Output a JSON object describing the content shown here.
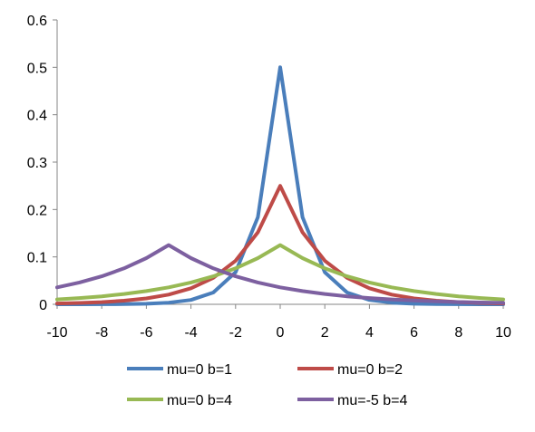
{
  "chart_data": {
    "type": "line",
    "title": "",
    "xlabel": "",
    "ylabel": "",
    "xlim": [
      -10,
      10
    ],
    "ylim": [
      0,
      0.6
    ],
    "x_ticks": [
      "-10",
      "-8",
      "-6",
      "-4",
      "-2",
      "0",
      "2",
      "4",
      "6",
      "8",
      "10"
    ],
    "y_ticks": [
      "0",
      "0.1",
      "0.2",
      "0.3",
      "0.4",
      "0.5",
      "0.6"
    ],
    "grid": false,
    "legend_position": "bottom",
    "x": [
      -10,
      -9,
      -8,
      -7,
      -6,
      -5,
      -4,
      -3,
      -2,
      -1,
      0,
      1,
      2,
      3,
      4,
      5,
      6,
      7,
      8,
      9,
      10
    ],
    "series": [
      {
        "name": "mu=0 b=1",
        "color": "#4A7EBB",
        "values": [
          2.3e-05,
          6.2e-05,
          0.000168,
          0.000456,
          0.00124,
          0.00337,
          0.00916,
          0.0249,
          0.0677,
          0.184,
          0.5,
          0.184,
          0.0677,
          0.0249,
          0.00916,
          0.00337,
          0.00124,
          0.000456,
          0.000168,
          6.2e-05,
          2.3e-05
        ]
      },
      {
        "name": "mu=0 b=2",
        "color": "#BE4B48",
        "values": [
          0.00168,
          0.00278,
          0.00458,
          0.00755,
          0.0124,
          0.0205,
          0.0338,
          0.0558,
          0.092,
          0.152,
          0.25,
          0.152,
          0.092,
          0.0558,
          0.0338,
          0.0205,
          0.0124,
          0.00755,
          0.00458,
          0.00278,
          0.00168
        ]
      },
      {
        "name": "mu=0 b=4",
        "color": "#98B954",
        "values": [
          0.0103,
          0.0132,
          0.0169,
          0.0217,
          0.0279,
          0.0358,
          0.046,
          0.059,
          0.0758,
          0.0974,
          0.125,
          0.0974,
          0.0758,
          0.059,
          0.046,
          0.0358,
          0.0279,
          0.0217,
          0.0169,
          0.0132,
          0.0103
        ]
      },
      {
        "name": "mu=-5 b=4",
        "color": "#7D60A0",
        "values": [
          0.0358,
          0.046,
          0.059,
          0.0758,
          0.0974,
          0.125,
          0.0974,
          0.0758,
          0.059,
          0.046,
          0.0358,
          0.0279,
          0.0217,
          0.0169,
          0.0132,
          0.0103,
          0.008,
          0.0062,
          0.0048,
          0.0038,
          0.003
        ]
      }
    ]
  }
}
